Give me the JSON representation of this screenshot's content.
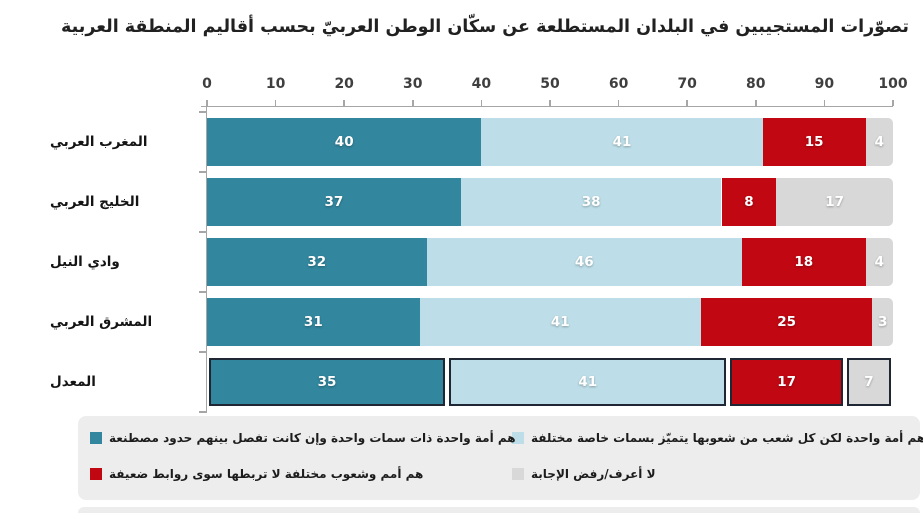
{
  "page": {
    "background": "#ffffff"
  },
  "chart_data": {
    "type": "bar",
    "stacked": true,
    "orientation": "horizontal",
    "title": "تصوّرات المستجيبين في البلدان المستطلعة عن سكّان الوطن العربيّ بحسب أقاليم المنطقة العربية",
    "categories": [
      "المغرب العربي",
      "الخليج العربي",
      "وادي النيل",
      "المشرق العربي",
      "المعدل"
    ],
    "series": [
      {
        "name": "هم أمة واحدة ذات سمات واحدة وإن كانت تفصل بينهم حدود مصطنعة",
        "color": "#32869e",
        "values": [
          40,
          37,
          32,
          31,
          35
        ]
      },
      {
        "name": "هم أمة واحدة لكن كل شعب من شعوبها يتميّز بسمات خاصة مختلفة",
        "color": "#bddee8",
        "values": [
          41,
          38,
          46,
          41,
          41
        ]
      },
      {
        "name": "هم أمم وشعوب مختلفة لا تربطها سوى روابط ضعيفة",
        "color": "#c00712",
        "values": [
          15,
          8,
          18,
          25,
          17
        ]
      },
      {
        "name": "لا أعرف/رفض الإجابة",
        "color": "#d8d8d8",
        "values": [
          4,
          17,
          4,
          3,
          7
        ]
      }
    ],
    "xlabel": "",
    "ylabel": "",
    "x_axis": {
      "min": 0,
      "max": 100,
      "ticks": [
        0,
        10,
        20,
        30,
        40,
        50,
        60,
        70,
        80,
        90,
        100
      ]
    },
    "highlighted_category": "المعدل",
    "legend_position": "bottom",
    "grid": false
  },
  "legend": {
    "items": [
      {
        "label": "هم أمة واحدة لكن كل شعب من شعوبها يتميّز بسمات خاصة مختلفة",
        "color": "#bddee8",
        "row": 0,
        "col": "right",
        "series_index": 1
      },
      {
        "label": "هم أمة واحدة ذات سمات واحدة وإن كانت تفصل بينهم حدود مصطنعة",
        "color": "#32869e",
        "row": 0,
        "col": "left",
        "series_index": 0
      },
      {
        "label": "لا أعرف/رفض الإجابة",
        "color": "#d8d8d8",
        "row": 1,
        "col": "right",
        "series_index": 3
      },
      {
        "label": "هم أمم وشعوب مختلفة لا تربطها سوى روابط ضعيفة",
        "color": "#c00712",
        "row": 1,
        "col": "left",
        "series_index": 2
      }
    ]
  },
  "colors": {
    "teal": "#32869e",
    "light_blue": "#bddee8",
    "red": "#c00712",
    "gray": "#d8d8d8",
    "axis": "#a6a6a6",
    "legend_background": "#ededed",
    "title_text": "#212121"
  }
}
